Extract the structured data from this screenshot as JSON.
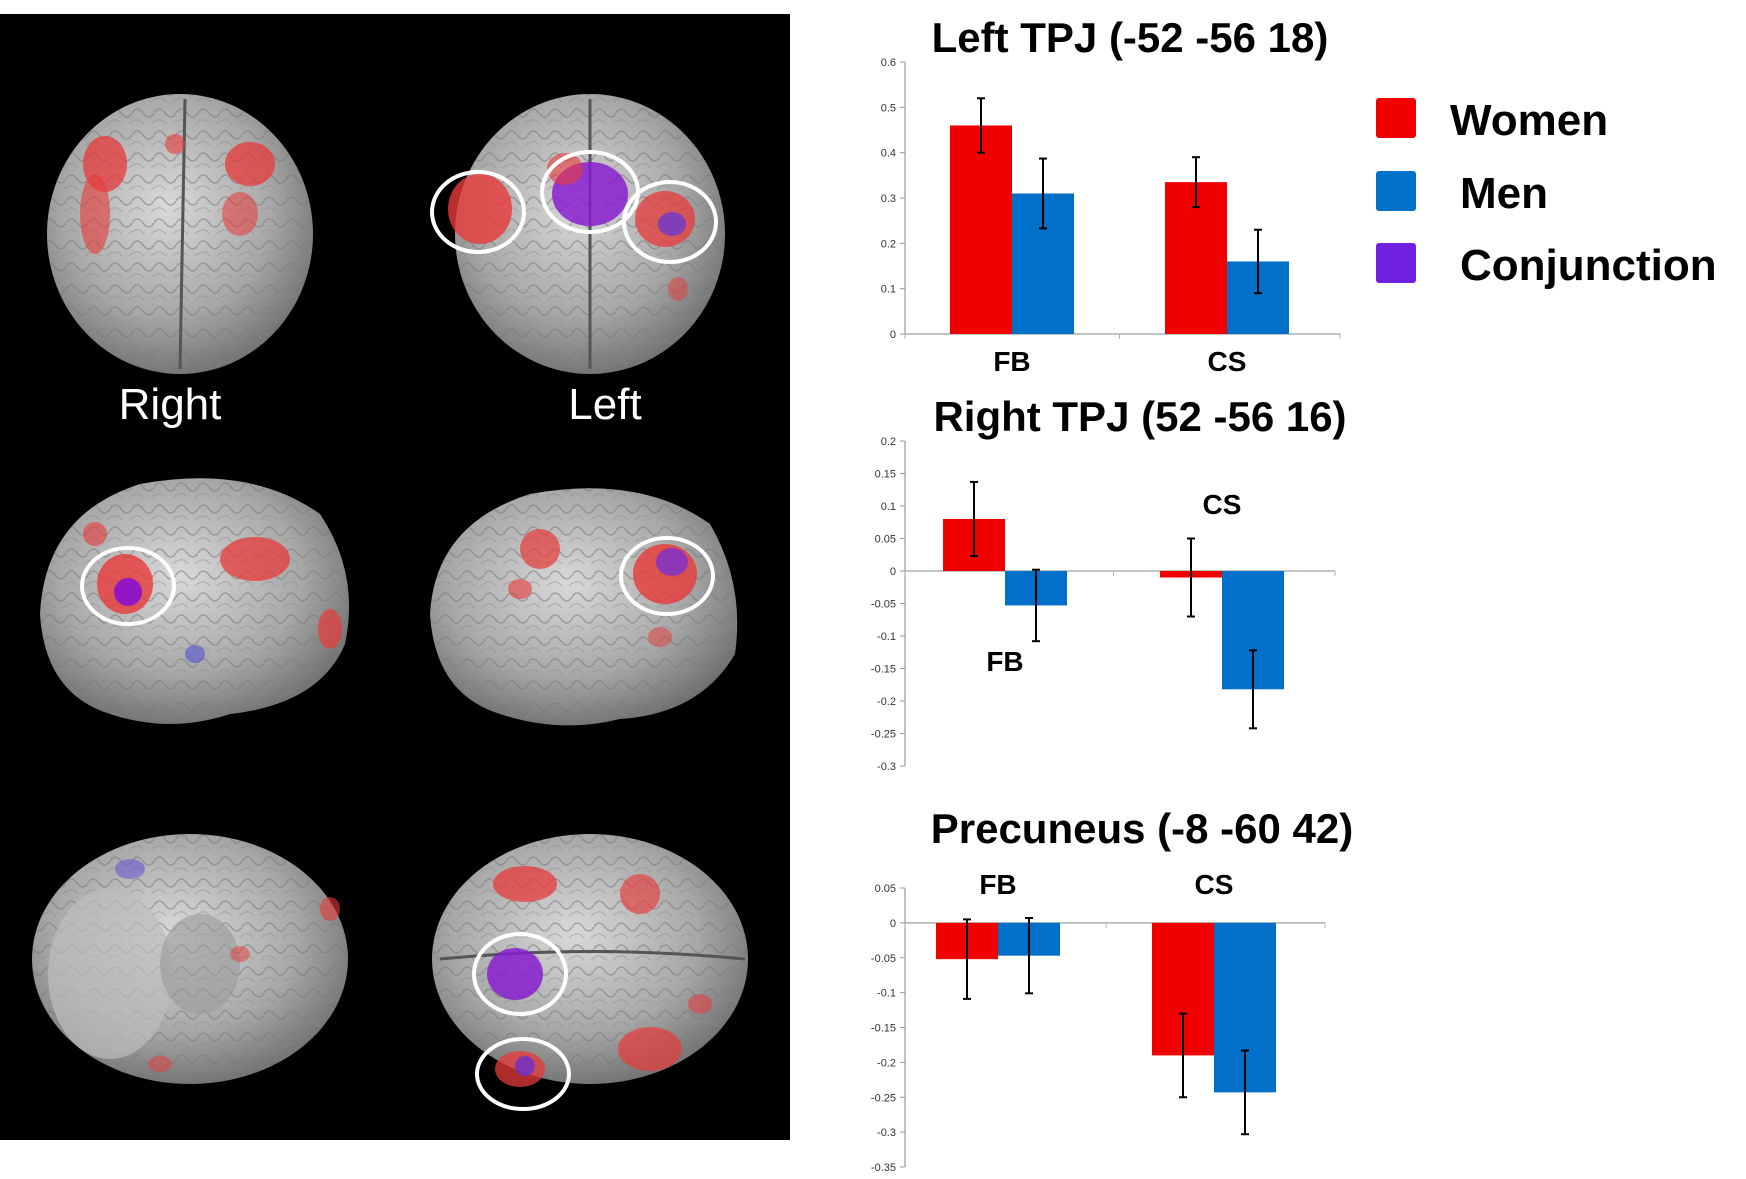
{
  "brain_panel": {
    "labels": {
      "right": "Right",
      "left": "Left"
    }
  },
  "colors": {
    "women": "#f00000",
    "men": "#0070c8",
    "conjunction": "#7020e0"
  },
  "legend": [
    {
      "label": "Women",
      "color": "#f00000"
    },
    {
      "label": "Men",
      "color": "#0070c8"
    },
    {
      "label": "Conjunction",
      "color": "#7020e0"
    }
  ],
  "chart_data": [
    {
      "type": "bar",
      "title": "Left TPJ (-52 -56 18)",
      "categories": [
        "FB",
        "CS"
      ],
      "series": [
        {
          "name": "Women",
          "values": [
            0.46,
            0.335
          ],
          "errors": [
            0.06,
            0.055
          ]
        },
        {
          "name": "Men",
          "values": [
            0.31,
            0.16
          ],
          "errors": [
            0.077,
            0.07
          ]
        }
      ],
      "ylim": [
        0,
        0.6
      ],
      "yticks": [
        0,
        0.1,
        0.2,
        0.3,
        0.4,
        0.5,
        0.6
      ],
      "ytick_labels": [
        "0",
        "0.1",
        "0.2",
        "0.3",
        "0.4",
        "0.5",
        "0.6"
      ],
      "category_label_pos": [
        "below",
        "below"
      ],
      "xlabel": "",
      "ylabel": ""
    },
    {
      "type": "bar",
      "title": "Right TPJ (52 -56 16)",
      "categories": [
        "FB",
        "CS"
      ],
      "series": [
        {
          "name": "Women",
          "values": [
            0.08,
            -0.01
          ],
          "errors": [
            0.057,
            0.06
          ]
        },
        {
          "name": "Men",
          "values": [
            -0.053,
            -0.182
          ],
          "errors": [
            0.055,
            0.06
          ]
        }
      ],
      "ylim": [
        -0.3,
        0.2
      ],
      "yticks": [
        0.2,
        0.15,
        0.1,
        0.05,
        0,
        -0.05,
        -0.1,
        -0.15,
        -0.2,
        -0.25,
        -0.3
      ],
      "ytick_labels": [
        "0.2",
        "0.15",
        "0.1",
        "0.05",
        "0",
        "-0.05",
        "-0.1",
        "-0.15",
        "-0.2",
        "-0.25",
        "-0.3"
      ],
      "category_label_pos": [
        "low",
        "high"
      ],
      "xlabel": "",
      "ylabel": ""
    },
    {
      "type": "bar",
      "title": "Precuneus (-8 -60 42)",
      "categories": [
        "FB",
        "CS"
      ],
      "series": [
        {
          "name": "Women",
          "values": [
            -0.052,
            -0.19
          ],
          "errors": [
            0.057,
            0.06
          ]
        },
        {
          "name": "Men",
          "values": [
            -0.047,
            -0.243
          ],
          "errors": [
            0.054,
            0.06
          ]
        }
      ],
      "ylim": [
        -0.35,
        0.05
      ],
      "yticks": [
        0.05,
        0,
        -0.05,
        -0.1,
        -0.15,
        -0.2,
        -0.25,
        -0.3,
        -0.35
      ],
      "ytick_labels": [
        "0.05",
        "0",
        "-0.05",
        "-0.1",
        "-0.15",
        "-0.2",
        "-0.25",
        "-0.3",
        "-0.35"
      ],
      "category_label_pos": [
        "above",
        "above"
      ],
      "xlabel": "",
      "ylabel": ""
    }
  ]
}
